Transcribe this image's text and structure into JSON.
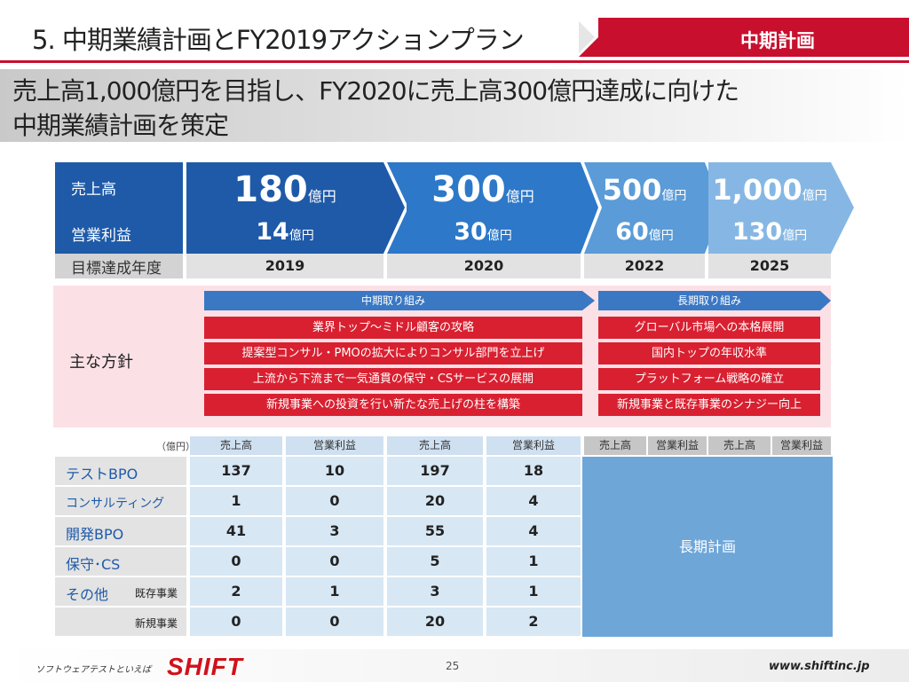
{
  "header": {
    "title": "5.  中期業績計画とFY2019アクションプラン",
    "tag": "中期計画",
    "accent_color": "#c8102e"
  },
  "subtitle": {
    "line1": "売上高1,000億円を目指し、FY2020に売上高300億円達成に向けた",
    "line2": "中期業績計画を策定"
  },
  "targets": {
    "labels": {
      "sales": "売上高",
      "profit": "営業利益",
      "year": "目標達成年度"
    },
    "years": [
      {
        "sales": "180",
        "sales_unit": "億円",
        "profit": "14",
        "profit_unit": "億円",
        "year": "2019",
        "color": "#1e5aa8"
      },
      {
        "sales": "300",
        "sales_unit": "億円",
        "profit": "30",
        "profit_unit": "億円",
        "year": "2020",
        "color": "#2d78c8"
      },
      {
        "sales": "500",
        "sales_unit": "億円",
        "profit": "60",
        "profit_unit": "億円",
        "year": "2022",
        "color": "#5a9bd8"
      },
      {
        "sales": "1,000",
        "sales_unit": "億円",
        "profit": "130",
        "profit_unit": "億円",
        "year": "2025",
        "color": "#86b7e4"
      }
    ]
  },
  "policies": {
    "label": "主な方針",
    "mid_header": "中期取り組み",
    "long_header": "長期取り組み",
    "mid_items": [
      "業界トップ～ミドル顧客の攻略",
      "提案型コンサル・PMOの拡大によりコンサル部門を立上げ",
      "上流から下流まで一気通貫の保守・CSサービスの展開",
      "新規事業への投資を行い新たな売上げの柱を構築"
    ],
    "long_items": [
      "グローバル市場への本格展開",
      "国内トップの年収水準",
      "プラットフォーム戦略の確立",
      "新規事業と既存事業のシナジー向上"
    ]
  },
  "segments": {
    "unit": "（億円）",
    "col_headers": [
      "売上高",
      "営業利益",
      "売上高",
      "営業利益",
      "売上高",
      "営業利益",
      "売上高",
      "営業利益"
    ],
    "rows": [
      {
        "name": "テストBPO",
        "sub": "",
        "values": [
          "137",
          "10",
          "197",
          "18"
        ]
      },
      {
        "name": "コンサルティング",
        "sub": "",
        "values": [
          "1",
          "0",
          "20",
          "4"
        ]
      },
      {
        "name": "開発BPO",
        "sub": "",
        "values": [
          "41",
          "3",
          "55",
          "4"
        ]
      },
      {
        "name": "保守･CS",
        "sub": "",
        "values": [
          "0",
          "0",
          "5",
          "1"
        ]
      },
      {
        "name": "その他",
        "sub": "既存事業",
        "values": [
          "2",
          "1",
          "3",
          "1"
        ]
      },
      {
        "name": "",
        "sub": "新規事業",
        "values": [
          "0",
          "0",
          "20",
          "2"
        ]
      }
    ],
    "long_term_label": "長期計画"
  },
  "footer": {
    "tagline": "ソフトウェアテストといえば",
    "logo": "SHIFT",
    "page": "25",
    "url": "www.shiftinc.jp"
  }
}
